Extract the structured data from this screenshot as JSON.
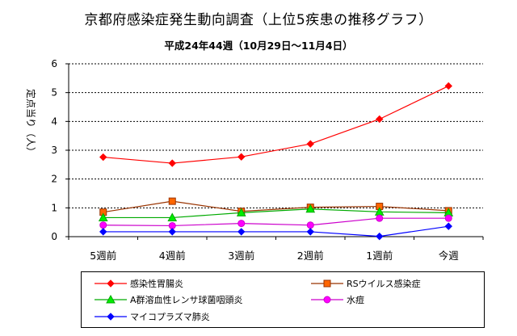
{
  "title": "京都府感染症発生動向調査（上位5疾患の推移グラフ）",
  "subtitle": "平成24年44週（10月29日〜11月4日）",
  "chart_data": {
    "type": "line",
    "ylabel": "定点当り（人）",
    "ylim": [
      0,
      6
    ],
    "yticks": [
      0,
      1,
      2,
      3,
      4,
      5,
      6
    ],
    "grid": true,
    "legend_position": "bottom",
    "categories": [
      "5週前",
      "4週前",
      "3週前",
      "2週前",
      "1週前",
      "今週"
    ],
    "series": [
      {
        "name": "感染性胃腸炎",
        "color": "#ff0000",
        "marker": "diamond",
        "values": [
          2.76,
          2.55,
          2.77,
          3.22,
          4.08,
          5.23
        ]
      },
      {
        "name": "RSウイルス感染症",
        "color": "#993300",
        "fill": "#ff6600",
        "marker": "square",
        "values": [
          0.85,
          1.23,
          0.88,
          1.02,
          1.05,
          0.9
        ]
      },
      {
        "name": "A群溶血性レンサ球菌咽頭炎",
        "color": "#00aa00",
        "fill": "#00ee00",
        "marker": "triangle",
        "values": [
          0.66,
          0.66,
          0.83,
          0.96,
          0.86,
          0.83
        ]
      },
      {
        "name": "水痘",
        "color": "#cc00cc",
        "fill": "#ff00ff",
        "marker": "circle",
        "values": [
          0.4,
          0.38,
          0.46,
          0.4,
          0.64,
          0.64
        ]
      },
      {
        "name": "マイコプラズマ肺炎",
        "color": "#0000ff",
        "fill": "#0000ff",
        "marker": "diamond",
        "values": [
          0.17,
          0.17,
          0.17,
          0.17,
          0.01,
          0.36
        ]
      }
    ]
  }
}
